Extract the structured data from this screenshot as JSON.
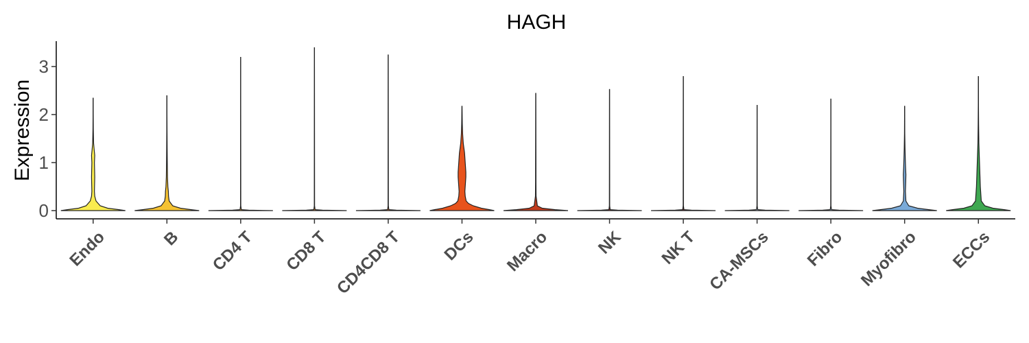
{
  "chart_data": {
    "type": "violin",
    "title": "HAGH",
    "xlabel": "",
    "ylabel": "Expression",
    "ylim": [
      -0.1,
      3.55
    ],
    "yticks": [
      "0",
      "1",
      "2",
      "3"
    ],
    "grid": false,
    "legend": "none",
    "categories": [
      "Endo",
      "B",
      "CD4 T",
      "CD8 T",
      "CD4CD8 T",
      "DCs",
      "Macro",
      "NK",
      "NK T",
      "CA-MSCs",
      "Fibro",
      "Myofibro",
      "ECCs"
    ],
    "colors": [
      "#f9ec4f",
      "#f5c232",
      "#f0a030",
      "#ee8a2a",
      "#ea7423",
      "#e8531c",
      "#c13b1d",
      "#9d2420",
      "#6f1d1f",
      "#c7d7eb",
      "#a6c2e0",
      "#7aaad8",
      "#3fa851"
    ],
    "max_values": [
      2.35,
      2.4,
      3.2,
      3.4,
      3.25,
      2.18,
      2.45,
      2.53,
      2.8,
      2.2,
      2.33,
      2.18,
      2.8
    ],
    "density_profiles": [
      [
        [
          0.0,
          1.0
        ],
        [
          0.02,
          0.8
        ],
        [
          0.05,
          0.45
        ],
        [
          0.1,
          0.22
        ],
        [
          0.2,
          0.09
        ],
        [
          0.3,
          0.05
        ],
        [
          0.4,
          0.04
        ],
        [
          0.55,
          0.045
        ],
        [
          0.7,
          0.05
        ],
        [
          0.85,
          0.045
        ],
        [
          1.0,
          0.04
        ],
        [
          1.15,
          0.05
        ],
        [
          1.25,
          0.035
        ],
        [
          1.4,
          0.015
        ],
        [
          1.7,
          0.006
        ],
        [
          2.0,
          0.003
        ],
        [
          2.35,
          0.0
        ]
      ],
      [
        [
          0.0,
          1.0
        ],
        [
          0.02,
          0.75
        ],
        [
          0.05,
          0.42
        ],
        [
          0.1,
          0.18
        ],
        [
          0.2,
          0.07
        ],
        [
          0.3,
          0.05
        ],
        [
          0.4,
          0.045
        ],
        [
          0.5,
          0.03
        ],
        [
          0.7,
          0.018
        ],
        [
          1.0,
          0.012
        ],
        [
          1.3,
          0.008
        ],
        [
          1.7,
          0.004
        ],
        [
          2.0,
          0.002
        ],
        [
          2.4,
          0.0
        ]
      ],
      [
        [
          0.0,
          1.0
        ],
        [
          0.01,
          0.25
        ],
        [
          0.02,
          0.02
        ],
        [
          0.1,
          0.004
        ],
        [
          3.2,
          0.0
        ]
      ],
      [
        [
          0.0,
          1.0
        ],
        [
          0.01,
          0.25
        ],
        [
          0.02,
          0.02
        ],
        [
          0.1,
          0.004
        ],
        [
          3.4,
          0.0
        ]
      ],
      [
        [
          0.0,
          1.0
        ],
        [
          0.01,
          0.25
        ],
        [
          0.02,
          0.02
        ],
        [
          0.1,
          0.004
        ],
        [
          3.25,
          0.0
        ]
      ],
      [
        [
          0.0,
          1.0
        ],
        [
          0.02,
          0.85
        ],
        [
          0.05,
          0.6
        ],
        [
          0.1,
          0.35
        ],
        [
          0.15,
          0.2
        ],
        [
          0.2,
          0.13
        ],
        [
          0.3,
          0.1
        ],
        [
          0.4,
          0.09
        ],
        [
          0.5,
          0.1
        ],
        [
          0.6,
          0.11
        ],
        [
          0.7,
          0.12
        ],
        [
          0.8,
          0.12
        ],
        [
          0.9,
          0.11
        ],
        [
          1.0,
          0.1
        ],
        [
          1.1,
          0.09
        ],
        [
          1.2,
          0.08
        ],
        [
          1.3,
          0.06
        ],
        [
          1.4,
          0.04
        ],
        [
          1.6,
          0.02
        ],
        [
          1.8,
          0.01
        ],
        [
          2.18,
          0.0
        ]
      ],
      [
        [
          0.0,
          1.0
        ],
        [
          0.02,
          0.6
        ],
        [
          0.05,
          0.2
        ],
        [
          0.1,
          0.05
        ],
        [
          0.3,
          0.01
        ],
        [
          0.6,
          0.006
        ],
        [
          1.0,
          0.005
        ],
        [
          1.5,
          0.003
        ],
        [
          2.45,
          0.0
        ]
      ],
      [
        [
          0.0,
          1.0
        ],
        [
          0.01,
          0.25
        ],
        [
          0.02,
          0.02
        ],
        [
          0.1,
          0.004
        ],
        [
          2.53,
          0.0
        ]
      ],
      [
        [
          0.0,
          1.0
        ],
        [
          0.01,
          0.25
        ],
        [
          0.02,
          0.02
        ],
        [
          0.1,
          0.004
        ],
        [
          2.8,
          0.0
        ]
      ],
      [
        [
          0.0,
          1.0
        ],
        [
          0.01,
          0.25
        ],
        [
          0.02,
          0.02
        ],
        [
          0.1,
          0.004
        ],
        [
          2.2,
          0.0
        ]
      ],
      [
        [
          0.0,
          1.0
        ],
        [
          0.01,
          0.25
        ],
        [
          0.02,
          0.02
        ],
        [
          0.1,
          0.004
        ],
        [
          2.33,
          0.0
        ]
      ],
      [
        [
          0.0,
          1.0
        ],
        [
          0.02,
          0.75
        ],
        [
          0.05,
          0.4
        ],
        [
          0.1,
          0.13
        ],
        [
          0.2,
          0.04
        ],
        [
          0.4,
          0.025
        ],
        [
          0.6,
          0.035
        ],
        [
          0.75,
          0.04
        ],
        [
          0.9,
          0.03
        ],
        [
          1.1,
          0.02
        ],
        [
          1.3,
          0.012
        ],
        [
          1.6,
          0.005
        ],
        [
          2.18,
          0.0
        ]
      ],
      [
        [
          0.0,
          1.0
        ],
        [
          0.02,
          0.8
        ],
        [
          0.05,
          0.45
        ],
        [
          0.1,
          0.2
        ],
        [
          0.2,
          0.09
        ],
        [
          0.3,
          0.08
        ],
        [
          0.4,
          0.07
        ],
        [
          0.5,
          0.06
        ],
        [
          0.7,
          0.05
        ],
        [
          0.9,
          0.04
        ],
        [
          1.1,
          0.03
        ],
        [
          1.4,
          0.015
        ],
        [
          1.8,
          0.007
        ],
        [
          2.2,
          0.003
        ],
        [
          2.8,
          0.0
        ]
      ]
    ]
  }
}
